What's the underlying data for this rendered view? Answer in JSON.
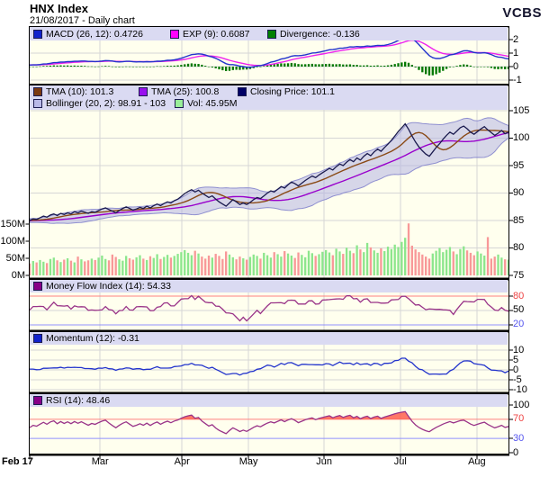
{
  "header": {
    "title": "HNX Index",
    "subtitle": "21/08/2017 - Daily chart",
    "brand": "VCBS"
  },
  "panels": {
    "macd": {
      "legend": [
        {
          "swatch": "#1122cc",
          "label": "MACD (26, 12): 0.4726"
        },
        {
          "swatch": "#ff00ff",
          "label": "EXP (9): 0.6087"
        },
        {
          "swatch": "#008000",
          "label": "Divergence: -0.136"
        }
      ],
      "yticks": [
        {
          "label": "2"
        },
        {
          "label": "1"
        },
        {
          "label": "0"
        },
        {
          "label": "-1"
        }
      ]
    },
    "main": {
      "legend_row1": [
        {
          "swatch": "#7b3a10",
          "label": "TMA (10): 101.3"
        },
        {
          "swatch": "#9911ee",
          "label": "TMA (25): 100.8"
        },
        {
          "swatch": "#000066",
          "label": "Closing Price: 101.1"
        }
      ],
      "legend_row2": [
        {
          "swatch": "#b9b9e8",
          "label": "Bollinger (20, 2): 98.91 - 103"
        },
        {
          "swatch": "#99ee99",
          "label": "Vol: 45.95M"
        }
      ],
      "yticks_right": [
        {
          "label": "105"
        },
        {
          "label": "100"
        },
        {
          "label": "95"
        },
        {
          "label": "90"
        },
        {
          "label": "85"
        },
        {
          "label": "80"
        },
        {
          "label": "75"
        }
      ],
      "yticks_left": [
        {
          "label": "150M"
        },
        {
          "label": "100M"
        },
        {
          "label": "50M"
        },
        {
          "label": "0M"
        }
      ]
    },
    "mfi": {
      "legend": [
        {
          "swatch": "#880088",
          "label": "Money Flow Index (14): 54.33"
        }
      ],
      "yticks": [
        {
          "label": "80",
          "color": "#ee4444"
        },
        {
          "label": "50"
        },
        {
          "label": "20",
          "color": "#5555ee"
        }
      ],
      "overbought": 80,
      "oversold": 20
    },
    "momentum": {
      "legend": [
        {
          "swatch": "#1122cc",
          "label": "Momentum (12): -0.31"
        }
      ],
      "yticks": [
        {
          "label": "10"
        },
        {
          "label": "5"
        },
        {
          "label": "0"
        },
        {
          "label": "-5"
        },
        {
          "label": "-10"
        }
      ]
    },
    "rsi": {
      "legend": [
        {
          "swatch": "#880088",
          "label": "RSI (14): 48.46"
        }
      ],
      "yticks": [
        {
          "label": "100"
        },
        {
          "label": "70",
          "color": "#ee4444"
        },
        {
          "label": "30",
          "color": "#5555ee"
        },
        {
          "label": "0"
        }
      ],
      "overbought": 70,
      "oversold": 30
    }
  },
  "xaxis": {
    "labels": [
      "Feb 17",
      "Mar",
      "Apr",
      "May",
      "Jun",
      "Jul",
      "Aug"
    ]
  },
  "colors": {
    "plot_bg": "#ffffee",
    "legend_bg": "#dadaf2",
    "grid": "#d6d6d6",
    "close_line": "#1a1a4e",
    "tma10_line": "#8a4a16",
    "tma25_line": "#9900cc",
    "bollinger_fill": "#b4b4e4",
    "bollinger_edge": "#8f8fd0",
    "vol_up": "#8ce68c",
    "vol_down": "#f89898",
    "macd_line": "#2233cc",
    "exp_line": "#ee22ee",
    "divergence_bar": "#007700",
    "mfi_line": "#993388",
    "momentum_line": "#2233cc",
    "rsi_line": "#993388",
    "overbought_line": "#ff8080",
    "oversold_line": "#9090ff",
    "over_fill": "#ff5544"
  },
  "chart_data": {
    "type": "line",
    "title": "HNX Index",
    "period": "Daily",
    "as_of_date": "21/08/2017",
    "price_axis": {
      "min": 75,
      "max": 105
    },
    "volume_axis_millions": {
      "min": 0,
      "max": 150
    },
    "close": [
      85.0,
      85.3,
      85.2,
      85.5,
      85.8,
      85.6,
      86.0,
      86.2,
      85.9,
      86.3,
      86.1,
      86.4,
      86.2,
      86.6,
      86.4,
      86.7,
      86.5,
      86.3,
      86.6,
      86.5,
      86.8,
      87.1,
      87.3,
      87.0,
      86.7,
      86.4,
      86.8,
      87.2,
      87.5,
      87.2,
      86.9,
      87.1,
      87.4,
      87.2,
      87.6,
      87.3,
      87.7,
      88.0,
      87.7,
      88.1,
      88.4,
      88.2,
      88.6,
      88.9,
      89.4,
      89.9,
      90.3,
      90.6,
      90.2,
      90.5,
      90.0,
      89.6,
      89.2,
      89.5,
      88.9,
      88.4,
      88.0,
      87.6,
      88.2,
      88.8,
      88.4,
      87.9,
      88.2,
      87.9,
      88.3,
      88.8,
      89.2,
      89.0,
      89.5,
      90.0,
      90.4,
      90.2,
      90.7,
      91.2,
      90.9,
      91.5,
      92.0,
      91.7,
      91.3,
      91.8,
      92.3,
      92.7,
      93.1,
      92.8,
      93.3,
      93.7,
      94.1,
      94.5,
      94.2,
      94.8,
      95.3,
      95.0,
      95.6,
      96.1,
      95.7,
      96.4,
      96.0,
      96.7,
      97.2,
      96.8,
      97.5,
      98.0,
      97.6,
      98.3,
      98.9,
      99.6,
      100.4,
      101.2,
      101.9,
      102.6,
      101.6,
      100.4,
      99.3,
      98.4,
      97.7,
      97.1,
      96.7,
      97.5,
      98.3,
      99.0,
      99.8,
      100.5,
      101.1,
      100.7,
      101.3,
      101.9,
      102.2,
      101.7,
      101.1,
      100.7,
      101.2,
      101.7,
      102.1,
      101.5,
      101.0,
      100.5,
      100.9,
      101.4,
      100.8,
      101.1
    ],
    "volume_millions": [
      35,
      42,
      38,
      45,
      40,
      36,
      48,
      52,
      44,
      39,
      46,
      50,
      43,
      38,
      55,
      47,
      41,
      44,
      49,
      45,
      52,
      58,
      48,
      44,
      61,
      54,
      47,
      43,
      57,
      50,
      46,
      53,
      59,
      49,
      45,
      56,
      51,
      62,
      48,
      54,
      60,
      52,
      57,
      63,
      68,
      74,
      66,
      59,
      72,
      64,
      55,
      49,
      58,
      52,
      63,
      57,
      48,
      70,
      61,
      53,
      47,
      55,
      50,
      46,
      54,
      61,
      57,
      49,
      66,
      59,
      52,
      68,
      62,
      55,
      71,
      64,
      58,
      51,
      67,
      60,
      53,
      72,
      65,
      57,
      62,
      69,
      74,
      67,
      59,
      78,
      70,
      63,
      81,
      72,
      65,
      88,
      76,
      68,
      95,
      82,
      73,
      66,
      79,
      71,
      84,
      77,
      90,
      83,
      98,
      110,
      152,
      87,
      76,
      68,
      61,
      55,
      49,
      64,
      72,
      80,
      68,
      75,
      83,
      70,
      62,
      77,
      85,
      73,
      66,
      59,
      70,
      64,
      58,
      112,
      49,
      55,
      61,
      52,
      47,
      45.95
    ],
    "lead_in_close": [
      84.0,
      84.2,
      83.9,
      84.3,
      84.5,
      84.2,
      84.6,
      84.4,
      84.7,
      84.5,
      84.8,
      84.6,
      84.9,
      85.1,
      84.8,
      84.6,
      84.9,
      85.0,
      84.7,
      84.5,
      84.8,
      85.0,
      85.2,
      84.9,
      84.7,
      85.0,
      85.1,
      84.8,
      84.6,
      84.9,
      85.1,
      85.3,
      85.0,
      84.8,
      85.1,
      85.2,
      84.9,
      85.0,
      85.2,
      85.1
    ],
    "lead_in_volume": [
      38,
      42,
      36,
      45,
      40,
      37,
      43,
      39,
      44,
      41,
      38,
      46,
      42,
      39,
      45,
      40,
      37,
      44,
      41,
      38,
      45,
      42,
      39,
      43,
      40,
      37,
      44,
      41,
      38,
      42,
      45,
      39,
      43,
      40,
      38,
      44,
      41,
      39,
      42,
      40
    ],
    "indicators": {
      "tma_fast": 10,
      "tma_slow": 25,
      "bollinger": [
        20,
        2
      ],
      "macd": [
        26,
        12
      ],
      "macd_signal": 9,
      "mfi": 14,
      "momentum": 12,
      "rsi": 14
    },
    "current": {
      "close": 101.1,
      "tma10": 101.3,
      "tma25": 100.8,
      "bollinger_low": 98.91,
      "bollinger_high": 103,
      "volume": "45.95M",
      "macd": 0.4726,
      "macd_signal": 0.6087,
      "macd_divergence": -0.136,
      "mfi": 54.33,
      "momentum": -0.31,
      "rsi": 48.46
    }
  }
}
